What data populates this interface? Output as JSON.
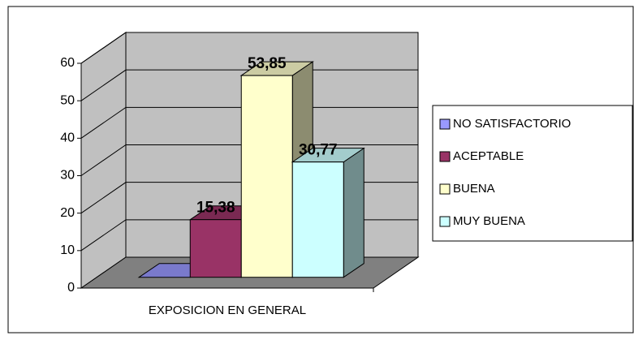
{
  "chart_data": {
    "type": "bar3d",
    "categories": [
      "EXPOSICION EN GENERAL"
    ],
    "series": [
      {
        "name": "NO SATISFACTORIO",
        "color": "#9999ff",
        "values": [
          0
        ],
        "value_labels": [
          null
        ]
      },
      {
        "name": "ACEPTABLE",
        "color": "#993366",
        "values": [
          15.38
        ],
        "value_labels": [
          "15,38"
        ]
      },
      {
        "name": "BUENA",
        "color": "#ffffcc",
        "values": [
          53.85
        ],
        "value_labels": [
          "53,85"
        ]
      },
      {
        "name": "MUY BUENA",
        "color": "#ccffff",
        "values": [
          30.77
        ],
        "value_labels": [
          "30,77"
        ]
      }
    ],
    "ylim": [
      0,
      60
    ],
    "yticks": [
      0,
      10,
      20,
      30,
      40,
      50,
      60
    ],
    "grid": true,
    "legend": "right"
  }
}
